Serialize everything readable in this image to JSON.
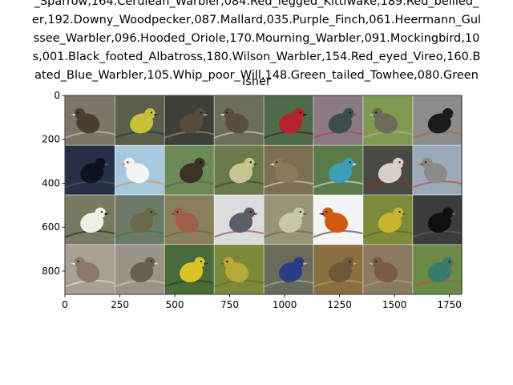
{
  "chart_data": {
    "type": "image_grid",
    "title_lines": [
      "_Sparrow,164.Cerulean_Warbler,084.Red_legged_Kittiwake,189.Red_bellied_",
      "er,192.Downy_Woodpecker,087.Mallard,035.Purple_Finch,061.Heermann_Gul",
      "ssee_Warbler,096.Hooded_Oriole,170.Mourning_Warbler,091.Mockingbird,10",
      "s,001.Black_footed_Albatross,180.Wilson_Warbler,154.Red_eyed_Vireo,160.B",
      "ated_Blue_Warbler,105.Whip_poor_Will,148.Green_tailed_Towhee,080.Green",
      "isher"
    ],
    "xlim": [
      0,
      1806
    ],
    "ylim": [
      906,
      0
    ],
    "xticks": [
      0,
      250,
      500,
      750,
      1000,
      1250,
      1500,
      1750
    ],
    "yticks": [
      0,
      200,
      400,
      600,
      800
    ],
    "grid": {
      "rows": 4,
      "cols": 8,
      "tile_size": 226,
      "padding": 2
    },
    "tiles": [
      {
        "bg": "#7d7566",
        "bird": "#4a3e30",
        "accent": "#d8cfc0"
      },
      {
        "bg": "#5b5e48",
        "bird": "#c9c038",
        "accent": "#1d2a5c"
      },
      {
        "bg": "#3e4038",
        "bird": "#5a4a3a",
        "accent": "#a89a84"
      },
      {
        "bg": "#6d6e58",
        "bird": "#5a4d3c",
        "accent": "#e8e0d0"
      },
      {
        "bg": "#4e6a4a",
        "bird": "#b8222a",
        "accent": "#2a1a18"
      },
      {
        "bg": "#8b7a86",
        "bird": "#3c4e4c",
        "accent": "#c8303a"
      },
      {
        "bg": "#7e9a52",
        "bird": "#6e6a5a",
        "accent": "#c0b8a0"
      },
      {
        "bg": "#8c8c8c",
        "bird": "#1c1c1c",
        "accent": "#c8581e"
      },
      {
        "bg": "#263044",
        "bird": "#0e1220",
        "accent": "#50607a"
      },
      {
        "bg": "#a8c8e0",
        "bird": "#f4f4f4",
        "accent": "#e88a30"
      },
      {
        "bg": "#6c8a58",
        "bird": "#3c3228",
        "accent": "#6a5a48"
      },
      {
        "bg": "#6a7a4a",
        "bird": "#c8c490",
        "accent": "#3c3a20"
      },
      {
        "bg": "#7e6e52",
        "bird": "#8a7a58",
        "accent": "#e8e0c8"
      },
      {
        "bg": "#5a7a4a",
        "bird": "#3aa0b8",
        "accent": "#f0f0e8"
      },
      {
        "bg": "#4a4a44",
        "bird": "#d8d0c8",
        "accent": "#c01818"
      },
      {
        "bg": "#9aaab8",
        "bird": "#8a8a88",
        "accent": "#c83020"
      },
      {
        "bg": "#7a7a60",
        "bird": "#f0eee8",
        "accent": "#1a1a1a"
      },
      {
        "bg": "#6c7a6a",
        "bird": "#6a6a4a",
        "accent": "#2e7a30"
      },
      {
        "bg": "#8a8060",
        "bird": "#a06048",
        "accent": "#6a5a40"
      },
      {
        "bg": "#dcdcdc",
        "bird": "#5a5e68",
        "accent": "#8a2a2a"
      },
      {
        "bg": "#9a9478",
        "bird": "#c8c8a8",
        "accent": "#5a5a40"
      },
      {
        "bg": "#f4f4f4",
        "bird": "#d05a10",
        "accent": "#1a1a2a"
      },
      {
        "bg": "#7e8a3a",
        "bird": "#c8b430",
        "accent": "#5a5a28"
      },
      {
        "bg": "#3c3c3c",
        "bird": "#101010",
        "accent": "#6a6a6a"
      },
      {
        "bg": "#a8a090",
        "bird": "#8a7a66",
        "accent": "#f0ece4"
      },
      {
        "bg": "#9a9488",
        "bird": "#6a5e50",
        "accent": "#d8d0c4"
      },
      {
        "bg": "#4a6a3a",
        "bird": "#d8c428",
        "accent": "#2a3a20"
      },
      {
        "bg": "#7a8a3a",
        "bird": "#b8a838",
        "accent": "#5a6a28"
      },
      {
        "bg": "#6a6a58",
        "bird": "#2a3e88",
        "accent": "#b8bcc8"
      },
      {
        "bg": "#8a7040",
        "bird": "#6a5838",
        "accent": "#c0a070"
      },
      {
        "bg": "#8a7a60",
        "bird": "#7a5a48",
        "accent": "#b0a898"
      },
      {
        "bg": "#6a8a48",
        "bird": "#3a7a6a",
        "accent": "#c85020"
      }
    ]
  }
}
